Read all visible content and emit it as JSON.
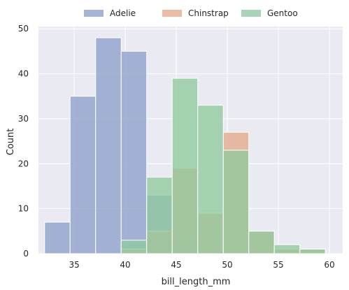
{
  "chart_data": {
    "type": "bar",
    "subtype": "histogram",
    "xlabel": "bill_length_mm",
    "ylabel": "Count",
    "xlim": [
      31.5,
      61.3
    ],
    "ylim": [
      0,
      50.5
    ],
    "xticks": [
      35,
      40,
      45,
      50,
      55,
      60
    ],
    "yticks": [
      0,
      10,
      20,
      30,
      40,
      50
    ],
    "grid": true,
    "legend": "top-center",
    "bin_width": 2.5,
    "series": [
      {
        "name": "Adelie",
        "color": "#8da0cb",
        "bins": [
          [
            32.1,
            34.6,
            7
          ],
          [
            34.6,
            37.1,
            35
          ],
          [
            37.1,
            39.6,
            48
          ],
          [
            39.6,
            42.1,
            45
          ],
          [
            42.1,
            44.6,
            13
          ],
          [
            44.6,
            47.1,
            3
          ]
        ]
      },
      {
        "name": "Chinstrap",
        "color": "#e4a98a",
        "bins": [
          [
            39.6,
            42.1,
            1
          ],
          [
            42.1,
            44.6,
            5
          ],
          [
            44.6,
            47.1,
            19
          ],
          [
            47.1,
            49.6,
            9
          ],
          [
            49.6,
            52.1,
            27
          ],
          [
            52.1,
            54.6,
            5
          ],
          [
            54.6,
            57.1,
            1
          ],
          [
            57.1,
            59.6,
            1
          ]
        ]
      },
      {
        "name": "Gentoo",
        "color": "#8fcb9f",
        "bins": [
          [
            39.6,
            42.1,
            3
          ],
          [
            42.1,
            44.6,
            17
          ],
          [
            44.6,
            47.1,
            39
          ],
          [
            47.1,
            49.6,
            33
          ],
          [
            49.6,
            52.1,
            23
          ],
          [
            52.1,
            54.6,
            5
          ],
          [
            54.6,
            57.1,
            2
          ],
          [
            57.1,
            59.6,
            1
          ]
        ]
      }
    ]
  }
}
